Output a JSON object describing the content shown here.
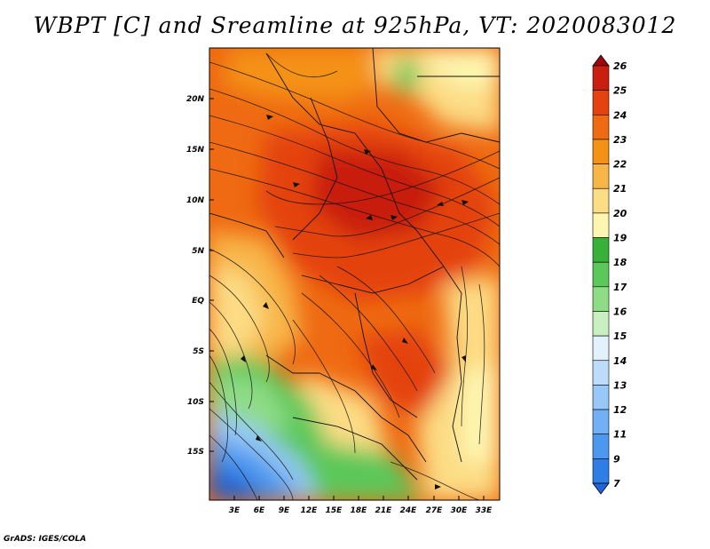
{
  "title": "WBPT [C] and Sreamline at 925hPa, VT: 2020083012",
  "credit": "GrADS: IGES/COLA",
  "map": {
    "lat_labels": [
      "20N",
      "15N",
      "10N",
      "5N",
      "EQ",
      "5S",
      "10S",
      "15S"
    ],
    "lon_labels": [
      "3E",
      "6E",
      "9E",
      "12E",
      "15E",
      "18E",
      "21E",
      "24E",
      "27E",
      "30E",
      "33E"
    ]
  },
  "colorbar": {
    "labels": [
      "7",
      "9",
      "11",
      "12",
      "13",
      "14",
      "15",
      "16",
      "17",
      "18",
      "19",
      "20",
      "21",
      "22",
      "23",
      "24",
      "25",
      "26"
    ],
    "colors": [
      "#1f63d6",
      "#2f7ee6",
      "#4d98ef",
      "#71b0f4",
      "#97c8f7",
      "#bcdcfa",
      "#e2f1fb",
      "#c8f0c0",
      "#8fdc86",
      "#5cc85a",
      "#38b13b",
      "#fdf6b0",
      "#fcdc84",
      "#f8b648",
      "#f49216",
      "#ef6a12",
      "#e44310",
      "#c81f0e",
      "#a0060a"
    ]
  }
}
